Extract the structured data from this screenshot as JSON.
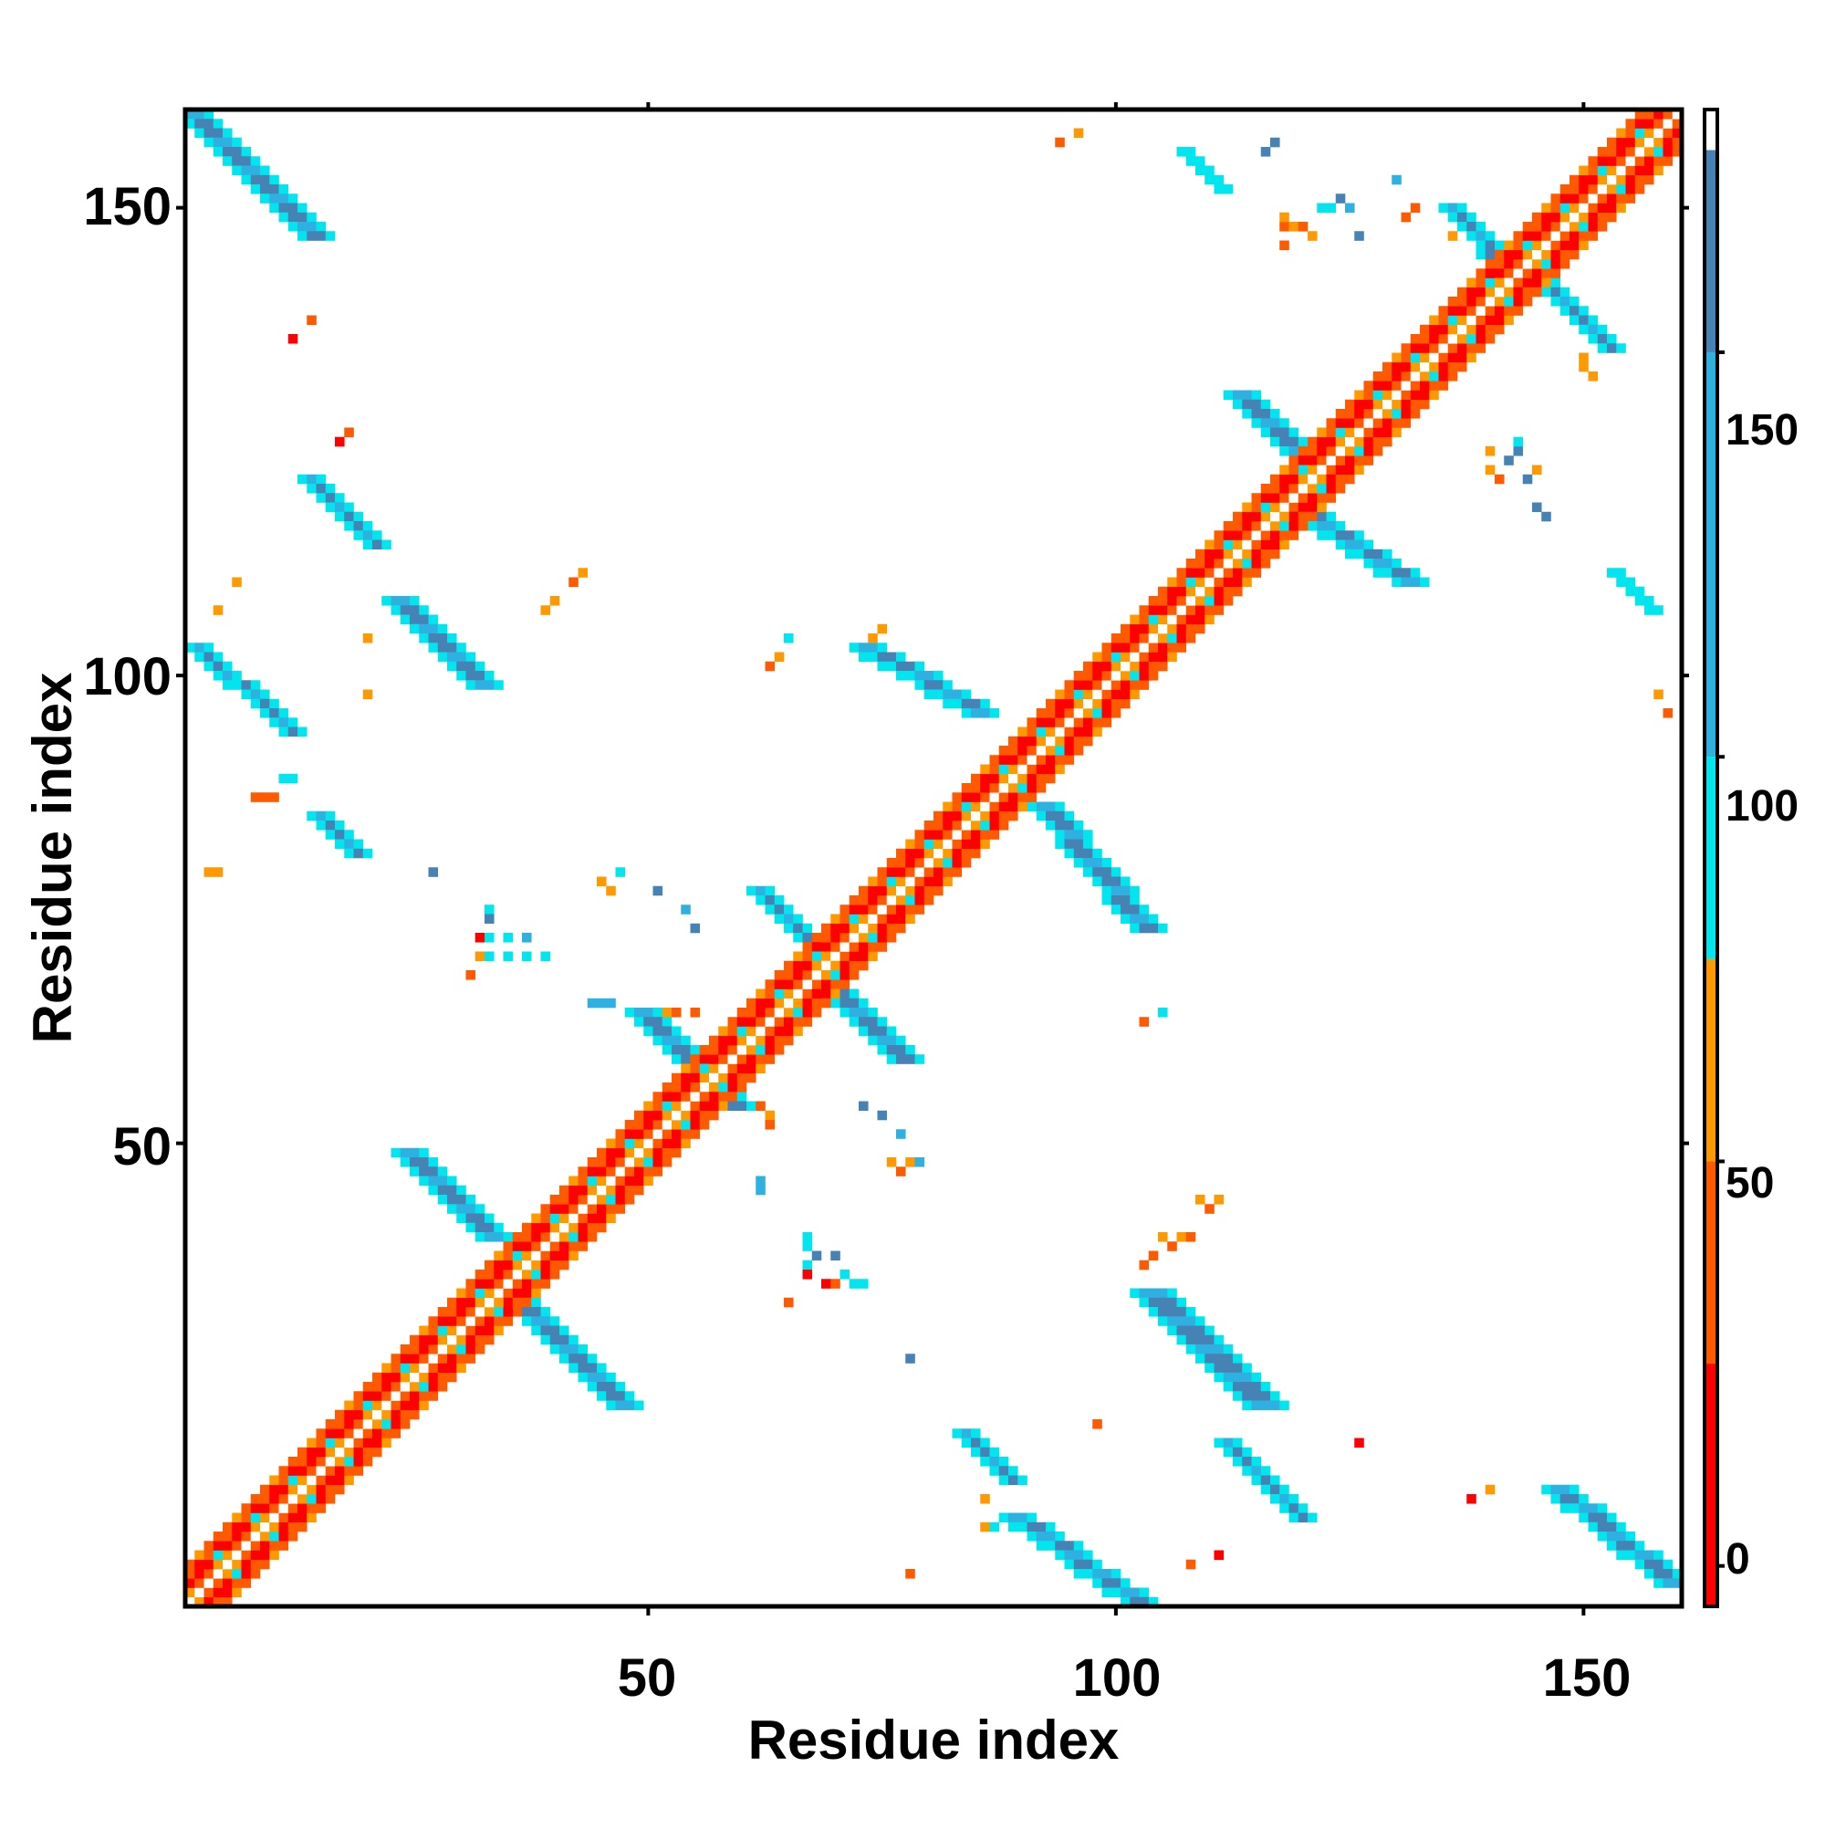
{
  "chart_data": {
    "type": "heatmap",
    "title": "",
    "xlabel": "Residue index",
    "ylabel": "Residue index",
    "xlim": [
      1,
      160
    ],
    "ylim": [
      1,
      160
    ],
    "xticks": [
      "50",
      "100",
      "150"
    ],
    "yticks": [
      "50",
      "100",
      "150"
    ],
    "colorbar": {
      "range": [
        -5,
        180
      ],
      "ticks": [
        "0",
        "50",
        "100",
        "150"
      ],
      "bands": [
        {
          "from": -5,
          "to": 25,
          "color": "#ff0000"
        },
        {
          "from": 25,
          "to": 50,
          "color": "#ff5a00"
        },
        {
          "from": 50,
          "to": 75,
          "color": "#ff9900"
        },
        {
          "from": 75,
          "to": 100,
          "color": "#00e5ee"
        },
        {
          "from": 100,
          "to": 150,
          "color": "#2eb1e0"
        },
        {
          "from": 150,
          "to": 175,
          "color": "#4682b4"
        },
        {
          "from": 175,
          "to": 180,
          "color": "#ffffff"
        }
      ]
    },
    "diagonal": {
      "from": 1,
      "to": 160
    },
    "contact_bands": [
      {
        "ij": [
          [
            2,
            160
          ],
          [
            15,
            147
          ]
        ],
        "w": 4,
        "v": 160
      },
      {
        "ij": [
          [
            2,
            103
          ],
          [
            12,
            94
          ]
        ],
        "w": 3,
        "v": 158
      },
      {
        "ij": [
          [
            14,
            121
          ],
          [
            21,
            114
          ]
        ],
        "w": 3,
        "v": 160
      },
      {
        "ij": [
          [
            15,
            85
          ],
          [
            19,
            81
          ]
        ],
        "w": 3,
        "v": 155
      },
      {
        "ij": [
          [
            24,
            108
          ],
          [
            33,
            99
          ]
        ],
        "w": 4,
        "v": 160
      },
      {
        "ij": [
          [
            25,
            49
          ],
          [
            34,
            40
          ]
        ],
        "w": 4,
        "v": 160
      },
      {
        "ij": [
          [
            36,
            34
          ],
          [
            48,
            22
          ]
        ],
        "w": 4,
        "v": 162
      },
      {
        "ij": [
          [
            50,
            64
          ],
          [
            60,
            54
          ]
        ],
        "w": 4,
        "v": 158
      },
      {
        "ij": [
          [
            62,
            77
          ],
          [
            70,
            69
          ]
        ],
        "w": 3,
        "v": 160
      },
      {
        "ij": [
          [
            70,
            67
          ],
          [
            78,
            59
          ]
        ],
        "w": 4,
        "v": 160
      },
      {
        "ij": [
          [
            74,
            103
          ],
          [
            86,
            96
          ]
        ],
        "w": 4,
        "v": 160
      },
      {
        "ij": [
          [
            93,
            86
          ],
          [
            104,
            73
          ]
        ],
        "w": 4,
        "v": 160
      },
      {
        "ij": [
          [
            114,
            130
          ],
          [
            122,
            122
          ]
        ],
        "w": 4,
        "v": 160
      },
      {
        "ij": [
          [
            120,
            118
          ],
          [
            132,
            110
          ]
        ],
        "w": 4,
        "v": 158
      },
      {
        "ij": [
          [
            136,
            150
          ],
          [
            143,
            142
          ]
        ],
        "w": 3,
        "v": 160
      },
      {
        "ij": [
          [
            145,
            143
          ],
          [
            153,
            135
          ]
        ],
        "w": 3,
        "v": 158
      },
      {
        "ij": [
          [
            104,
            34
          ],
          [
            116,
            22
          ]
        ],
        "w": 5,
        "v": 158
      },
      {
        "ij": [
          [
            112,
            18
          ],
          [
            120,
            10
          ]
        ],
        "w": 3,
        "v": 160
      },
      {
        "ij": [
          [
            84,
            19
          ],
          [
            89,
            14
          ]
        ],
        "w": 3,
        "v": 155
      },
      {
        "ij": [
          [
            90,
            10
          ],
          [
            103,
            1
          ]
        ],
        "w": 4,
        "v": 160
      },
      {
        "ij": [
          [
            148,
            13
          ],
          [
            160,
            3
          ]
        ],
        "w": 4,
        "v": 160
      },
      {
        "ij": [
          [
            108,
            156
          ],
          [
            112,
            152
          ]
        ],
        "w": 2,
        "v": 160
      },
      {
        "ij": [
          [
            154,
            111
          ],
          [
            158,
            107
          ]
        ],
        "w": 2,
        "v": 160
      }
    ],
    "contact_cells": [
      {
        "i": 12,
        "j": 136,
        "v": 2
      },
      {
        "i": 14,
        "j": 138,
        "v": 40
      },
      {
        "i": 18,
        "j": 126,
        "v": 40
      },
      {
        "i": 17,
        "j": 125,
        "v": 10
      },
      {
        "i": 6,
        "j": 110,
        "v": 50
      },
      {
        "i": 4,
        "j": 107,
        "v": 60
      },
      {
        "i": 20,
        "j": 98,
        "v": 55
      },
      {
        "i": 8,
        "j": 87,
        "v": 40
      },
      {
        "i": 9,
        "j": 87,
        "v": 40
      },
      {
        "i": 10,
        "j": 87,
        "v": 40
      },
      {
        "i": 11,
        "j": 89,
        "v": 90
      },
      {
        "i": 12,
        "j": 89,
        "v": 90
      },
      {
        "i": 3,
        "j": 79,
        "v": 60
      },
      {
        "i": 4,
        "j": 79,
        "v": 60
      },
      {
        "i": 27,
        "j": 79,
        "v": 155
      },
      {
        "i": 33,
        "j": 75,
        "v": 90
      },
      {
        "i": 33,
        "j": 74,
        "v": 155
      },
      {
        "i": 32,
        "j": 72,
        "v": 10
      },
      {
        "i": 33,
        "j": 72,
        "v": 90
      },
      {
        "i": 35,
        "j": 72,
        "v": 90
      },
      {
        "i": 37,
        "j": 72,
        "v": 120
      },
      {
        "i": 32,
        "j": 70,
        "v": 60
      },
      {
        "i": 33,
        "j": 70,
        "v": 90
      },
      {
        "i": 35,
        "j": 70,
        "v": 90
      },
      {
        "i": 37,
        "j": 70,
        "v": 90
      },
      {
        "i": 39,
        "j": 70,
        "v": 90
      },
      {
        "i": 31,
        "j": 68,
        "v": 40
      },
      {
        "i": 45,
        "j": 78,
        "v": 60
      },
      {
        "i": 46,
        "j": 77,
        "v": 60
      },
      {
        "i": 47,
        "j": 79,
        "v": 90
      },
      {
        "i": 51,
        "j": 77,
        "v": 155
      },
      {
        "i": 54,
        "j": 75,
        "v": 120
      },
      {
        "i": 55,
        "j": 73,
        "v": 155
      },
      {
        "i": 39,
        "j": 107,
        "v": 60
      },
      {
        "i": 40,
        "j": 108,
        "v": 60
      },
      {
        "i": 42,
        "j": 110,
        "v": 40
      },
      {
        "i": 43,
        "j": 111,
        "v": 60
      },
      {
        "i": 20,
        "j": 104,
        "v": 60
      },
      {
        "i": 63,
        "j": 101,
        "v": 40
      },
      {
        "i": 64,
        "j": 102,
        "v": 60
      },
      {
        "i": 65,
        "j": 104,
        "v": 90
      },
      {
        "i": 74,
        "j": 104,
        "v": 60
      },
      {
        "i": 75,
        "j": 105,
        "v": 60
      },
      {
        "i": 44,
        "j": 65,
        "v": 120
      },
      {
        "i": 45,
        "j": 65,
        "v": 120
      },
      {
        "i": 46,
        "j": 65,
        "v": 120
      },
      {
        "i": 52,
        "j": 64,
        "v": 60
      },
      {
        "i": 53,
        "j": 64,
        "v": 40
      },
      {
        "i": 55,
        "j": 64,
        "v": 40
      },
      {
        "i": 73,
        "j": 54,
        "v": 155
      },
      {
        "i": 75,
        "j": 53,
        "v": 155
      },
      {
        "i": 77,
        "j": 51,
        "v": 120
      },
      {
        "i": 76,
        "j": 48,
        "v": 60
      },
      {
        "i": 77,
        "j": 47,
        "v": 40
      },
      {
        "i": 78,
        "j": 48,
        "v": 60
      },
      {
        "i": 79,
        "j": 48,
        "v": 120
      },
      {
        "i": 62,
        "j": 54,
        "v": 40
      },
      {
        "i": 63,
        "j": 53,
        "v": 60
      },
      {
        "i": 63,
        "j": 52,
        "v": 40
      },
      {
        "i": 62,
        "j": 45,
        "v": 120
      },
      {
        "i": 62,
        "j": 46,
        "v": 120
      },
      {
        "i": 67,
        "j": 40,
        "v": 90
      },
      {
        "i": 67,
        "j": 39,
        "v": 90
      },
      {
        "i": 68,
        "j": 38,
        "v": 155
      },
      {
        "i": 70,
        "j": 38,
        "v": 155
      },
      {
        "i": 67,
        "j": 37,
        "v": 90
      },
      {
        "i": 67,
        "j": 36,
        "v": 10
      },
      {
        "i": 69,
        "j": 35,
        "v": 10
      },
      {
        "i": 70,
        "j": 35,
        "v": 40
      },
      {
        "i": 71,
        "j": 36,
        "v": 90
      },
      {
        "i": 72,
        "j": 35,
        "v": 90
      },
      {
        "i": 73,
        "j": 35,
        "v": 90
      },
      {
        "i": 65,
        "j": 33,
        "v": 40
      },
      {
        "i": 78,
        "j": 27,
        "v": 155
      },
      {
        "i": 103,
        "j": 63,
        "v": 40
      },
      {
        "i": 105,
        "j": 64,
        "v": 90
      },
      {
        "i": 109,
        "j": 44,
        "v": 60
      },
      {
        "i": 110,
        "j": 43,
        "v": 40
      },
      {
        "i": 111,
        "j": 44,
        "v": 60
      },
      {
        "i": 105,
        "j": 40,
        "v": 60
      },
      {
        "i": 106,
        "j": 39,
        "v": 40
      },
      {
        "i": 107,
        "j": 40,
        "v": 60
      },
      {
        "i": 108,
        "j": 40,
        "v": 40
      },
      {
        "i": 104,
        "j": 38,
        "v": 40
      },
      {
        "i": 103,
        "j": 37,
        "v": 40
      },
      {
        "i": 98,
        "j": 20,
        "v": 40
      },
      {
        "i": 78,
        "j": 4,
        "v": 40
      },
      {
        "i": 108,
        "j": 5,
        "v": 40
      },
      {
        "i": 111,
        "j": 6,
        "v": 10
      },
      {
        "i": 86,
        "j": 9,
        "v": 60
      },
      {
        "i": 87,
        "j": 9,
        "v": 90
      },
      {
        "i": 86,
        "j": 12,
        "v": 60
      },
      {
        "i": 126,
        "j": 18,
        "v": 10
      },
      {
        "i": 138,
        "j": 12,
        "v": 2
      },
      {
        "i": 140,
        "j": 13,
        "v": 60
      },
      {
        "i": 94,
        "j": 157,
        "v": 40
      },
      {
        "i": 96,
        "j": 158,
        "v": 60
      },
      {
        "i": 118,
        "j": 148,
        "v": 40
      },
      {
        "i": 119,
        "j": 148,
        "v": 60
      },
      {
        "i": 120,
        "j": 148,
        "v": 40
      },
      {
        "i": 118,
        "j": 149,
        "v": 60
      },
      {
        "i": 122,
        "j": 150,
        "v": 90
      },
      {
        "i": 123,
        "j": 150,
        "v": 90
      },
      {
        "i": 124,
        "j": 151,
        "v": 155
      },
      {
        "i": 125,
        "j": 150,
        "v": 120
      },
      {
        "i": 126,
        "j": 147,
        "v": 155
      },
      {
        "i": 118,
        "j": 146,
        "v": 40
      },
      {
        "i": 121,
        "j": 147,
        "v": 60
      },
      {
        "i": 140,
        "j": 124,
        "v": 60
      },
      {
        "i": 140,
        "j": 122,
        "v": 60
      },
      {
        "i": 141,
        "j": 121,
        "v": 40
      },
      {
        "i": 142,
        "j": 123,
        "v": 155
      },
      {
        "i": 143,
        "j": 124,
        "v": 155
      },
      {
        "i": 143,
        "j": 125,
        "v": 90
      },
      {
        "i": 144,
        "j": 121,
        "v": 155
      },
      {
        "i": 145,
        "j": 122,
        "v": 60
      },
      {
        "i": 145,
        "j": 118,
        "v": 155
      },
      {
        "i": 146,
        "j": 117,
        "v": 155
      },
      {
        "i": 150,
        "j": 134,
        "v": 60
      },
      {
        "i": 150,
        "j": 133,
        "v": 60
      },
      {
        "i": 151,
        "j": 132,
        "v": 60
      },
      {
        "i": 136,
        "j": 147,
        "v": 60
      },
      {
        "i": 131,
        "j": 149,
        "v": 40
      },
      {
        "i": 132,
        "j": 150,
        "v": 40
      },
      {
        "i": 158,
        "j": 98,
        "v": 60
      },
      {
        "i": 159,
        "j": 96,
        "v": 40
      },
      {
        "i": 116,
        "j": 156,
        "v": 155
      },
      {
        "i": 117,
        "j": 157,
        "v": 155
      },
      {
        "i": 130,
        "j": 153,
        "v": 120
      }
    ]
  }
}
